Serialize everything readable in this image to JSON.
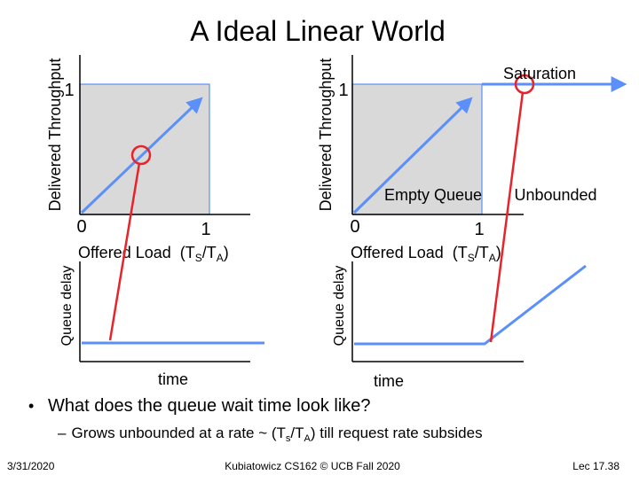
{
  "slide": {
    "title": "A Ideal Linear World",
    "bullet": "What does the queue wait time look like?",
    "sub_bullet": {
      "dash": "–",
      "text": "Grows unbounded at a rate ~ (T",
      "sub1": "s",
      "mid": "/T",
      "sub2": "A",
      "tail": ") till request rate subsides"
    },
    "footer": {
      "date": "3/31/2020",
      "course": "Kubiatowicz CS162 © UCB Fall 2020",
      "lecture": "Lec 17.38"
    }
  },
  "left_panel": {
    "throughput_ylabel": "Delivered Throughput",
    "ytick_one": "1",
    "xtick_zero": "0",
    "xtick_one": "1",
    "xlabel": {
      "base": "Offered Load  (T",
      "sub1": "S",
      "mid": "/T",
      "sub2": "A",
      "close": ")"
    },
    "queue_ylabel": "Queue delay",
    "time_label": "time"
  },
  "right_panel": {
    "throughput_ylabel": "Delivered Throughput",
    "ytick_one": "1",
    "xtick_zero": "0",
    "xtick_one": "1",
    "xlabel": {
      "base": "Offered Load  (T",
      "sub1": "S",
      "mid": "/T",
      "sub2": "A",
      "close": ")"
    },
    "saturation_label": "Saturation",
    "empty_queue_label": "Empty Queue",
    "unbounded_label": "Unbounded",
    "queue_ylabel": "Queue delay",
    "time_label": "time"
  },
  "colors": {
    "line_blue": "#5b8ff9",
    "highlight_red": "#e8232a",
    "region_gray": "#d9d9d9",
    "axis": "#000000"
  }
}
